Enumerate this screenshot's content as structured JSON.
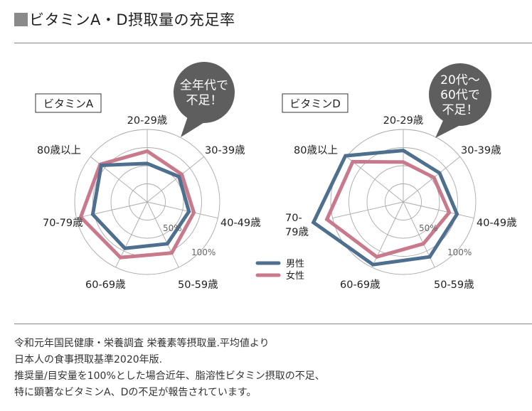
{
  "header": {
    "title": "ビタミンA・D摂取量の充足率",
    "title_marker_color": "#8a8a8a"
  },
  "legend": {
    "items": [
      {
        "label": "男性",
        "color": "#4f6f8f"
      },
      {
        "label": "女性",
        "color": "#c9798c"
      }
    ]
  },
  "charts": [
    {
      "label": "ビタミンA",
      "bubble_lines": [
        "全年代で",
        "不足！"
      ],
      "ring_labels": {
        "inner": "50%",
        "outer": "100%"
      },
      "axes": [
        "20-29歳",
        "30-39歳",
        "40-49歳",
        "50-59歳",
        "60-69歳",
        "70-79歳",
        "80歳以上"
      ]
    },
    {
      "label": "ビタミンD",
      "bubble_lines": [
        "20代〜",
        "60代で",
        "不足！"
      ],
      "ring_labels": {
        "inner": "50%",
        "outer": "100%"
      },
      "axes": [
        "20-29歳",
        "30-39歳",
        "40-49歳",
        "50-59歳",
        "60-69歳",
        "70-",
        "80歳以上"
      ],
      "axis_label_extra": {
        "70-79": [
          "70-",
          "79歳"
        ]
      }
    }
  ],
  "chart_data": [
    {
      "type": "radar",
      "title": "ビタミンA",
      "categories": [
        "20-29歳",
        "30-39歳",
        "40-49歳",
        "50-59歳",
        "60-69歳",
        "70-79歳",
        "80歳以上"
      ],
      "series": [
        {
          "name": "男性",
          "values": [
            53,
            56,
            59,
            64,
            71,
            77,
            81
          ]
        },
        {
          "name": "女性",
          "values": [
            70,
            61,
            66,
            78,
            85,
            94,
            83
          ]
        }
      ],
      "rings": [
        25,
        50,
        75,
        100
      ],
      "ring_labels": [
        "50%",
        "100%"
      ],
      "rlim": [
        0,
        100
      ]
    },
    {
      "type": "radar",
      "title": "ビタミンD",
      "categories": [
        "20-29歳",
        "30-39歳",
        "40-49歳",
        "50-59歳",
        "60-69歳",
        "70-79歳",
        "80歳以上"
      ],
      "series": [
        {
          "name": "男性",
          "values": [
            71,
            64,
            76,
            84,
            96,
            127,
            102
          ]
        },
        {
          "name": "女性",
          "values": [
            55,
            54,
            65,
            64,
            84,
            108,
            89
          ]
        }
      ],
      "rings": [
        25,
        50,
        75,
        100
      ],
      "ring_labels": [
        "50%",
        "100%"
      ],
      "rlim": [
        0,
        100
      ]
    }
  ],
  "footer": {
    "lines": [
      "令和元年国民健康・栄養調査 栄養素等摂取量.平均値より",
      "日本人の食事摂取基準2020年版.",
      "推奨量/目安量を100%とした場合近年、脂溶性ビタミン摂取の不足、",
      "特に顕著なビタミンA、Dの不足が報告されています。"
    ]
  },
  "colors": {
    "male": "#4f6f8f",
    "female": "#c9798c",
    "grid": "#aaaaaa",
    "bubble": "#5e5e5e",
    "divider": "#888888"
  }
}
